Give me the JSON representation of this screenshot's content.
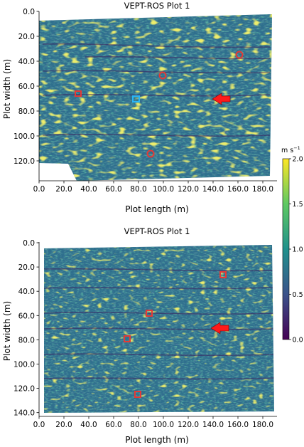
{
  "chart_data": [
    {
      "type": "heatmap",
      "title": "VEPT-ROS Plot 1",
      "xlabel": "Plot length (m)",
      "ylabel": "Plot width (m)",
      "xlim": [
        0,
        190
      ],
      "ylim": [
        130,
        0
      ],
      "xticks": [
        "0.0",
        "20.0",
        "40.0",
        "60.0",
        "80.0",
        "100.0",
        "120.0",
        "140.0",
        "160.0",
        "180.0"
      ],
      "yticks": [
        "0.0",
        "20.0",
        "40.0",
        "60.0",
        "80.0",
        "100.0",
        "120.0"
      ],
      "markers": [
        {
          "shape": "circle",
          "color": "#e53935",
          "x": 163,
          "y": 36
        },
        {
          "shape": "circle",
          "color": "#e53935",
          "x": 101,
          "y": 53
        },
        {
          "shape": "square",
          "color": "#e53935",
          "x": 33,
          "y": 67
        },
        {
          "shape": "square",
          "color": "#29b6f6",
          "x": 80,
          "y": 71
        },
        {
          "shape": "circle",
          "color": "#e53935",
          "x": 91,
          "y": 115
        }
      ],
      "arrow": {
        "x": 148,
        "y": 70,
        "direction": "left",
        "color": "#ff1a1a"
      }
    },
    {
      "type": "heatmap",
      "title": "VEPT-ROS Plot 1",
      "xlabel": "Plot length (m)",
      "ylabel": "Plot width (m)",
      "xlim": [
        0,
        190
      ],
      "ylim": [
        145,
        0
      ],
      "xticks": [
        "0.0",
        "20.0",
        "40.0",
        "60.0",
        "80.0",
        "100.0",
        "120.0",
        "140.0",
        "160.0",
        "180.0"
      ],
      "yticks": [
        "0.0",
        "20.0",
        "40.0",
        "60.0",
        "80.0",
        "100.0",
        "120.0",
        "140.0"
      ],
      "markers": [
        {
          "shape": "square",
          "color": "#e53935",
          "x": 150,
          "y": 29
        },
        {
          "shape": "square",
          "color": "#e53935",
          "x": 89,
          "y": 60
        },
        {
          "shape": "square",
          "color": "#e53935",
          "x": 72,
          "y": 81
        },
        {
          "shape": "square",
          "color": "#e53935",
          "x": 85,
          "y": 126
        }
      ],
      "arrow": {
        "x": 147,
        "y": 71,
        "direction": "left",
        "color": "#ff1a1a"
      }
    }
  ],
  "colorbar": {
    "unit_label": "m s",
    "unit_exponent": "−1",
    "range": [
      0.0,
      2.0
    ],
    "ticks": [
      "0.0",
      "0.5",
      "1.0",
      "1.5",
      "2.0"
    ],
    "colormap": "viridis",
    "stops": [
      "#440154",
      "#3b528b",
      "#21918c",
      "#5ec962",
      "#fde725"
    ]
  }
}
